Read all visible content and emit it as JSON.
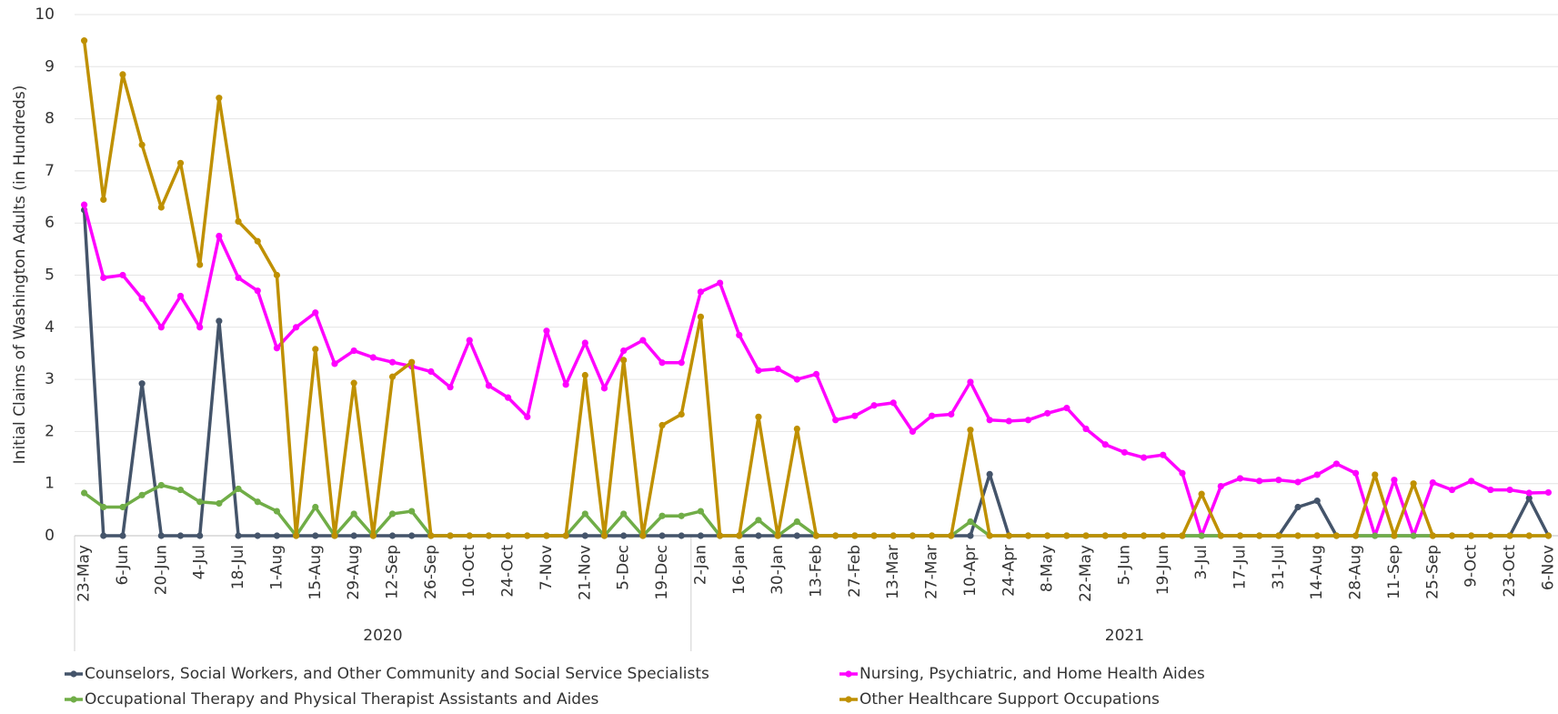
{
  "chart_data": {
    "type": "line",
    "y_label": "Initial Claims of Washington Adults (in Hundreds)",
    "categories": [
      "23-May",
      null,
      "6-Jun",
      null,
      "20-Jun",
      null,
      "4-Jul",
      null,
      "18-Jul",
      null,
      "1-Aug",
      null,
      "15-Aug",
      null,
      "29-Aug",
      null,
      "12-Sep",
      null,
      "26-Sep",
      null,
      "10-Oct",
      null,
      "24-Oct",
      null,
      "7-Nov",
      null,
      "21-Nov",
      null,
      "5-Dec",
      null,
      "19-Dec",
      null,
      "2-Jan",
      null,
      "16-Jan",
      null,
      "30-Jan",
      null,
      "13-Feb",
      null,
      "27-Feb",
      null,
      "13-Mar",
      null,
      "27-Mar",
      null,
      "10-Apr",
      null,
      "24-Apr",
      null,
      "8-May",
      null,
      "22-May",
      null,
      "5-Jun",
      null,
      "19-Jun",
      null,
      "3-Jul",
      null,
      "17-Jul",
      null,
      "31-Jul",
      null,
      "14-Aug",
      null,
      "28-Aug",
      null,
      "11-Sep",
      null,
      "25-Sep",
      null,
      "9-Oct",
      null,
      "23-Oct",
      null,
      "6-Nov"
    ],
    "x_groups": [
      {
        "label": "2020",
        "count": 32
      },
      {
        "label": "2021",
        "count": 45
      }
    ],
    "ylim": [
      0,
      10
    ],
    "yticks": [
      0,
      1,
      2,
      3,
      4,
      5,
      6,
      7,
      8,
      9,
      10
    ],
    "grid": true,
    "series": [
      {
        "name": "Counselors, Social Workers, and Other Community and Social Service Specialists",
        "color": "#44546a",
        "values": [
          6.25,
          0,
          0,
          2.92,
          0,
          0,
          0,
          4.12,
          0,
          0,
          0,
          0,
          0,
          0,
          0,
          0,
          0,
          0,
          0,
          0,
          0,
          0,
          0,
          0,
          0,
          0,
          0,
          0,
          0,
          0,
          0,
          0,
          0,
          0,
          0,
          0,
          0,
          0,
          0,
          0,
          0,
          0,
          0,
          0,
          0,
          0,
          0,
          1.18,
          0,
          0,
          0,
          0,
          0,
          0,
          0,
          0,
          0,
          0,
          0,
          0,
          0,
          0,
          0,
          0.55,
          0.67,
          0,
          0,
          0,
          0,
          0,
          0,
          0,
          0,
          0,
          0,
          0.72,
          0
        ]
      },
      {
        "name": "Nursing, Psychiatric, and Home Health Aides",
        "color": "#ff00ff",
        "values": [
          6.35,
          4.95,
          5.0,
          4.55,
          4.0,
          4.6,
          4.0,
          5.75,
          4.95,
          4.7,
          3.6,
          4.0,
          4.28,
          3.3,
          3.55,
          3.42,
          3.33,
          3.25,
          3.15,
          2.85,
          3.75,
          2.88,
          2.65,
          2.28,
          3.93,
          2.9,
          3.7,
          2.83,
          3.55,
          3.75,
          3.32,
          3.32,
          4.68,
          4.85,
          3.85,
          3.17,
          3.2,
          3.0,
          3.1,
          2.22,
          2.3,
          2.5,
          2.55,
          2.0,
          2.3,
          2.33,
          2.95,
          2.22,
          2.2,
          2.22,
          2.35,
          2.45,
          2.05,
          1.75,
          1.6,
          1.5,
          1.55,
          1.2,
          0,
          0.95,
          1.1,
          1.05,
          1.07,
          1.03,
          1.17,
          1.38,
          1.2,
          0,
          1.07,
          0,
          1.02,
          0.88,
          1.05,
          0.88,
          0.88,
          0.82,
          0.83
        ]
      },
      {
        "name": "Occupational Therapy and Physical Therapist Assistants and Aides",
        "color": "#70ad47",
        "values": [
          0.82,
          0.55,
          0.55,
          0.78,
          0.97,
          0.88,
          0.65,
          0.62,
          0.9,
          0.65,
          0.47,
          0,
          0.55,
          0,
          0.42,
          0,
          0.42,
          0.47,
          0,
          0,
          0,
          0,
          0,
          0,
          0,
          0,
          0.42,
          0,
          0.42,
          0,
          0.38,
          0.38,
          0.47,
          0,
          0,
          0.3,
          0,
          0.27,
          0,
          0,
          0,
          0,
          0,
          0,
          0,
          0,
          0.27,
          0,
          0,
          0,
          0,
          0,
          0,
          0,
          0,
          0,
          0,
          0,
          0,
          0,
          0,
          0,
          0,
          0,
          0,
          0,
          0,
          0,
          0,
          0,
          0,
          0,
          0,
          0,
          0,
          0,
          0
        ]
      },
      {
        "name": "Other Healthcare Support Occupations",
        "color": "#bf9000",
        "values": [
          9.5,
          6.45,
          8.85,
          7.5,
          6.3,
          7.15,
          5.2,
          8.4,
          6.03,
          5.65,
          5.0,
          0,
          3.58,
          0,
          2.93,
          0,
          3.05,
          3.33,
          0,
          0,
          0,
          0,
          0,
          0,
          0,
          0,
          3.08,
          0,
          3.37,
          0,
          2.12,
          2.33,
          4.2,
          0,
          0,
          2.28,
          0,
          2.05,
          0,
          0,
          0,
          0,
          0,
          0,
          0,
          0,
          2.03,
          0,
          0,
          0,
          0,
          0,
          0,
          0,
          0,
          0,
          0,
          0,
          0.8,
          0,
          0,
          0,
          0,
          0,
          0,
          0,
          0,
          1.17,
          0,
          1.0,
          0,
          0,
          0,
          0,
          0,
          0,
          0
        ]
      }
    ]
  }
}
